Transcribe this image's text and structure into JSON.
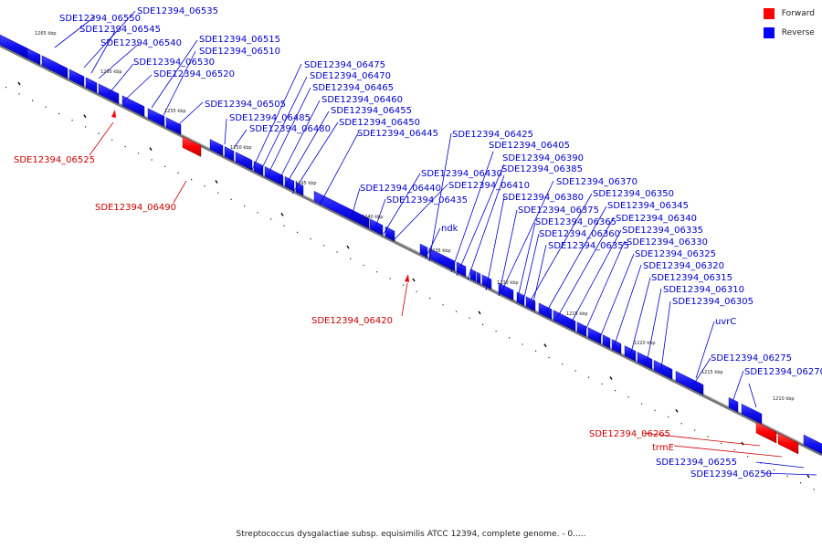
{
  "legend": {
    "forward_label": "Forward",
    "reverse_label": "Reverse",
    "forward_color": "#ff0000",
    "reverse_color": "#0000ff"
  },
  "caption": "Streptococcus dysgalactiae subsp. equisimilis ATCC 12394, complete genome. - 0.....",
  "ticks": [
    "1265 kbp",
    "1260 kbp",
    "1255 kbp",
    "1250 kbp",
    "1245 kbp",
    "1240 kbp",
    "1235 kbp",
    "1230 kbp",
    "1225 kbp",
    "1220 kbp",
    "1215 kbp",
    "1210 kbp"
  ],
  "reverse_genes": [
    "SDE12394_06550",
    "SDE12394_06535",
    "SDE12394_06545",
    "SDE12394_06540",
    "SDE12394_06515",
    "SDE12394_06510",
    "SDE12394_06530",
    "SDE12394_06520",
    "SDE12394_06505",
    "SDE12394_06475",
    "SDE12394_06470",
    "SDE12394_06465",
    "SDE12394_06460",
    "SDE12394_06455",
    "SDE12394_06485",
    "SDE12394_06480",
    "SDE12394_06450",
    "SDE12394_06445",
    "SDE12394_06425",
    "SDE12394_06405",
    "SDE12394_06390",
    "SDE12394_06385",
    "SDE12394_06430",
    "SDE12394_06410",
    "SDE12394_06370",
    "SDE12394_06440",
    "SDE12394_06380",
    "SDE12394_06350",
    "SDE12394_06435",
    "SDE12394_06345",
    "SDE12394_06375",
    "SDE12394_06340",
    "SDE12394_06365",
    "ndk",
    "SDE12394_06335",
    "SDE12394_06360",
    "SDE12394_06330",
    "SDE12394_06355",
    "SDE12394_06325",
    "SDE12394_06320",
    "SDE12394_06315",
    "SDE12394_06310",
    "SDE12394_06305",
    "uvrC",
    "SDE12394_06275",
    "SDE12394_06270",
    "SDE12394_06255",
    "SDE12394_06250"
  ],
  "forward_genes": [
    "SDE12394_06525",
    "SDE12394_06490",
    "SDE12394_06420",
    "SDE12394_06265",
    "trmE"
  ]
}
